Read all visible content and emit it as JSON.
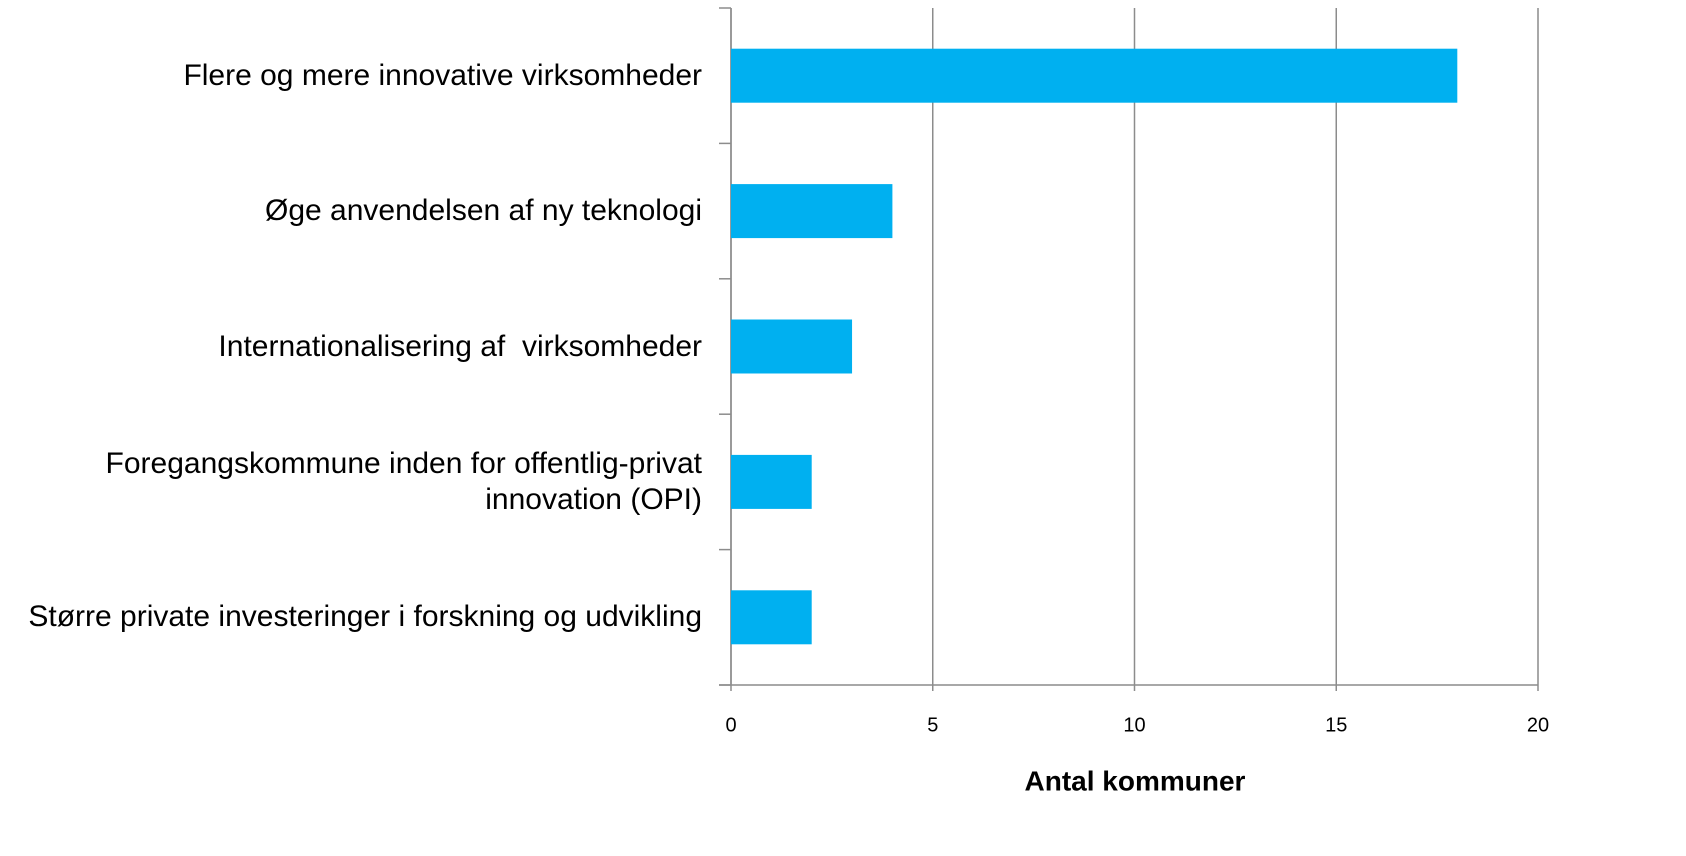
{
  "chart_data": {
    "type": "bar",
    "orientation": "horizontal",
    "categories": [
      "Flere og mere innovative virksomheder",
      "Øge anvendelsen af ny teknologi",
      "Internationalisering af  virksomheder",
      "Foregangskommune inden for offentlig-privat innovation (OPI)",
      "Større private investeringer i forskning og udvikling"
    ],
    "values": [
      18,
      4,
      3,
      2,
      2
    ],
    "color": "#00b0f0",
    "xlabel": "Antal kommuner",
    "xlim": [
      0,
      20
    ],
    "xticks": [
      0,
      5,
      10,
      15,
      20
    ],
    "grid": true
  }
}
